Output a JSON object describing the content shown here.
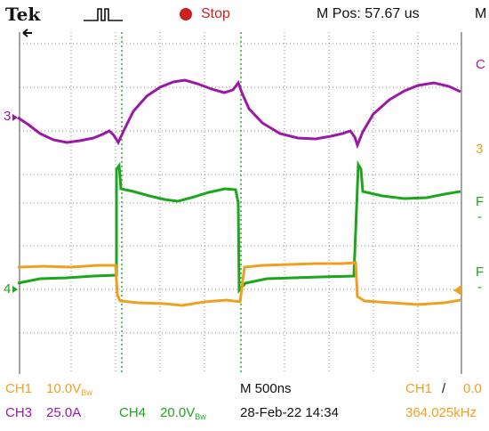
{
  "header": {
    "brand": "Tek",
    "run_state": "Stop",
    "m_pos": "M Pos: 57.67 us",
    "menu_letter": "M"
  },
  "side_labels": {
    "ch3_marker": "3",
    "ch4_marker": "4",
    "right_c": "C",
    "right_3": "3",
    "right_f1": "F",
    "right_f1_dash": "-",
    "right_f2": "F",
    "right_f2_dash": "-"
  },
  "status": {
    "ch1": "CH1",
    "ch1_scale": "10.0V",
    "ch1_bw": "Bw",
    "timebase": "M 500ns",
    "trig_src": "CH1",
    "trig_slope": "/",
    "trig_level": "0.0",
    "ch3": "CH3",
    "ch3_scale": "25.0A",
    "ch4": "CH4",
    "ch4_scale": "20.0V",
    "ch4_bw": "Bw",
    "date": "28-Feb-22 14:34",
    "freq": "364.025kHz"
  },
  "colors": {
    "ch1": "#f0a020",
    "ch3": "#9a1aa6",
    "ch4": "#1ea51e",
    "stop": "#cc1f1f",
    "grid": "#8a8a8a"
  }
}
